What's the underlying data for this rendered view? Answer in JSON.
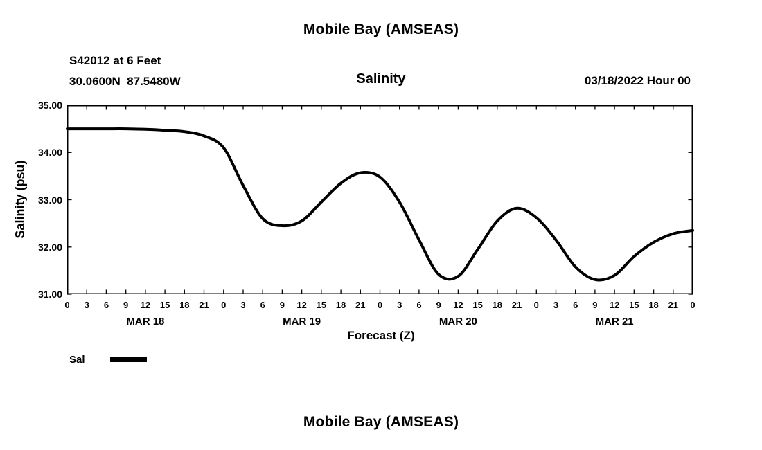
{
  "header": {
    "title": "Mobile Bay (AMSEAS)",
    "station": "S42012 at 6 Feet",
    "coords": "30.0600N  87.5480W",
    "plot_title": "Salinity",
    "datetime": "03/18/2022 Hour 00"
  },
  "legend": {
    "label": "Sal"
  },
  "footer": {
    "title": "Mobile Bay (AMSEAS)"
  },
  "colors": {
    "line": "#000000",
    "background": "#ffffff",
    "text": "#000000"
  },
  "chart_data": {
    "type": "line",
    "title": "Salinity",
    "xlabel": "Forecast (Z)",
    "ylabel": "Salinity (psu)",
    "x_unit": "forecast hour (Z), starting 03/18/2022 00Z",
    "xlim": [
      0,
      96
    ],
    "ylim": [
      31.0,
      35.0
    ],
    "grid": false,
    "legend_position": "below-left",
    "x_ticks": [
      0,
      3,
      6,
      9,
      12,
      15,
      18,
      21,
      24,
      27,
      30,
      33,
      36,
      39,
      42,
      45,
      48,
      51,
      54,
      57,
      60,
      63,
      66,
      69,
      72,
      75,
      78,
      81,
      84,
      87,
      90,
      93,
      96
    ],
    "x_tick_labels": [
      "0",
      "3",
      "6",
      "9",
      "12",
      "15",
      "18",
      "21",
      "0",
      "3",
      "6",
      "9",
      "12",
      "15",
      "18",
      "21",
      "0",
      "3",
      "6",
      "9",
      "12",
      "15",
      "18",
      "21",
      "0",
      "3",
      "6",
      "9",
      "12",
      "15",
      "18",
      "21",
      "0"
    ],
    "y_ticks": [
      35,
      34,
      33,
      32,
      31
    ],
    "y_tick_labels": [
      "35.00",
      "34.00",
      "33.00",
      "32.00",
      "31.00"
    ],
    "day_labels": [
      {
        "label": "MAR 18",
        "center_hour": 12
      },
      {
        "label": "MAR 19",
        "center_hour": 36
      },
      {
        "label": "MAR 20",
        "center_hour": 60
      },
      {
        "label": "MAR 21",
        "center_hour": 84
      }
    ],
    "series": [
      {
        "name": "Sal",
        "x": [
          0,
          3,
          6,
          9,
          12,
          15,
          18,
          21,
          24,
          27,
          30,
          33,
          36,
          39,
          42,
          45,
          48,
          51,
          54,
          57,
          60,
          63,
          66,
          69,
          72,
          75,
          78,
          81,
          84,
          87,
          90,
          93,
          96
        ],
        "values": [
          34.5,
          34.5,
          34.5,
          34.5,
          34.49,
          34.47,
          34.44,
          34.35,
          34.1,
          33.3,
          32.6,
          32.45,
          32.55,
          32.95,
          33.35,
          33.57,
          33.48,
          32.95,
          32.15,
          31.42,
          31.38,
          31.95,
          32.55,
          32.82,
          32.62,
          32.15,
          31.58,
          31.31,
          31.4,
          31.8,
          32.1,
          32.28,
          32.35
        ]
      }
    ]
  }
}
